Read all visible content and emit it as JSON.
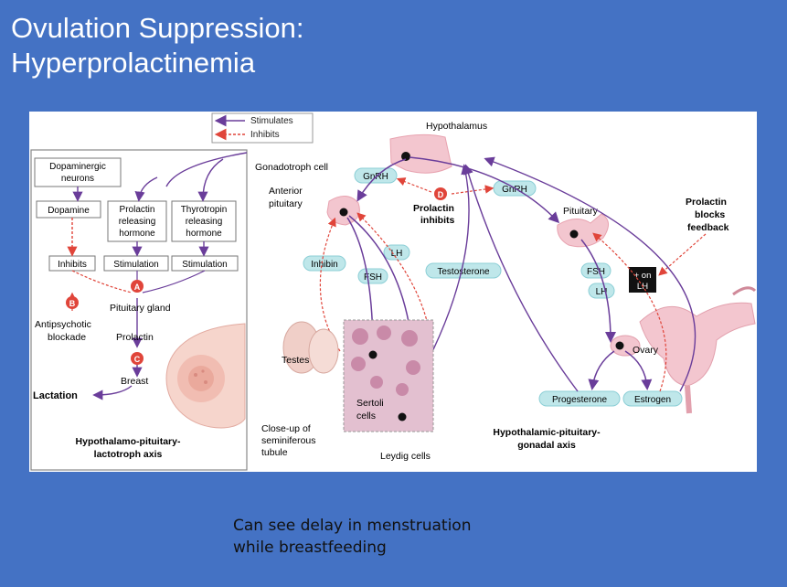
{
  "slide": {
    "title_line1": "Ovulation Suppression:",
    "title_line2": "Hyperprolactinemia",
    "caption_line1": "Can see delay in menstruation",
    "caption_line2": "while breastfeeding"
  },
  "colors": {
    "background": "#4472C4",
    "stimulate_arrow": "#6a3d9a",
    "inhibit_arrow": "#e0453a",
    "hormone_pill": "#bfe7ea",
    "organ_pink": "#f3c6cf"
  },
  "legend": {
    "stimulates": "Stimulates",
    "inhibits": "Inhibits"
  },
  "left_panel": {
    "dopaminergic_line1": "Dopaminergic",
    "dopaminergic_line2": "neurons",
    "dopamine": "Dopamine",
    "prl_rh_line1": "Prolactin",
    "prl_rh_line2": "releasing",
    "prl_rh_line3": "hormone",
    "trh_line1": "Thyrotropin",
    "trh_line2": "releasing",
    "trh_line3": "hormone",
    "inhibits": "Inhibits",
    "stimulation1": "Stimulation",
    "stimulation2": "Stimulation",
    "marker_a": "A",
    "marker_b": "B",
    "marker_c": "C",
    "pituitary_gland": "Pituitary gland",
    "antipsychotic_line1": "Antipsychotic",
    "antipsychotic_line2": "blockade",
    "prolactin": "Prolactin",
    "breast": "Breast",
    "lactation": "Lactation",
    "axis_line1": "Hypothalamo-pituitary-",
    "axis_line2": "lactotroph axis"
  },
  "right_panel": {
    "hypothalamus": "Hypothalamus",
    "gonadotroph_cell": "Gonadotroph cell",
    "gnrh_left": "GnRH",
    "gnrh_right": "GnRH",
    "marker_d": "D",
    "prolactin_inhibits_line1": "Prolactin",
    "prolactin_inhibits_line2": "inhibits",
    "anterior_line1": "Anterior",
    "anterior_line2": "pituitary",
    "inhibin": "Inhibin",
    "lh_left": "LH",
    "fsh_left": "FSH",
    "testosterone": "Testosterone",
    "testes": "Testes",
    "sertoli_line1": "Sertoli",
    "sertoli_line2": "cells",
    "closeup_line1": "Close-up of",
    "closeup_line2": "seminiferous",
    "closeup_line3": "tubule",
    "leydig": "Leydig cells",
    "pituitary": "Pituitary",
    "fsh_right": "FSH",
    "lh_right": "LH",
    "plus_on_line1": "+ on",
    "plus_on_line2": "LH",
    "ovary": "Ovary",
    "progesterone": "Progesterone",
    "estrogen": "Estrogen",
    "blocks_line1": "Prolactin",
    "blocks_line2": "blocks",
    "blocks_line3": "feedback",
    "axis_line1": "Hypothalamic-pituitary-",
    "axis_line2": "gonadal axis"
  }
}
